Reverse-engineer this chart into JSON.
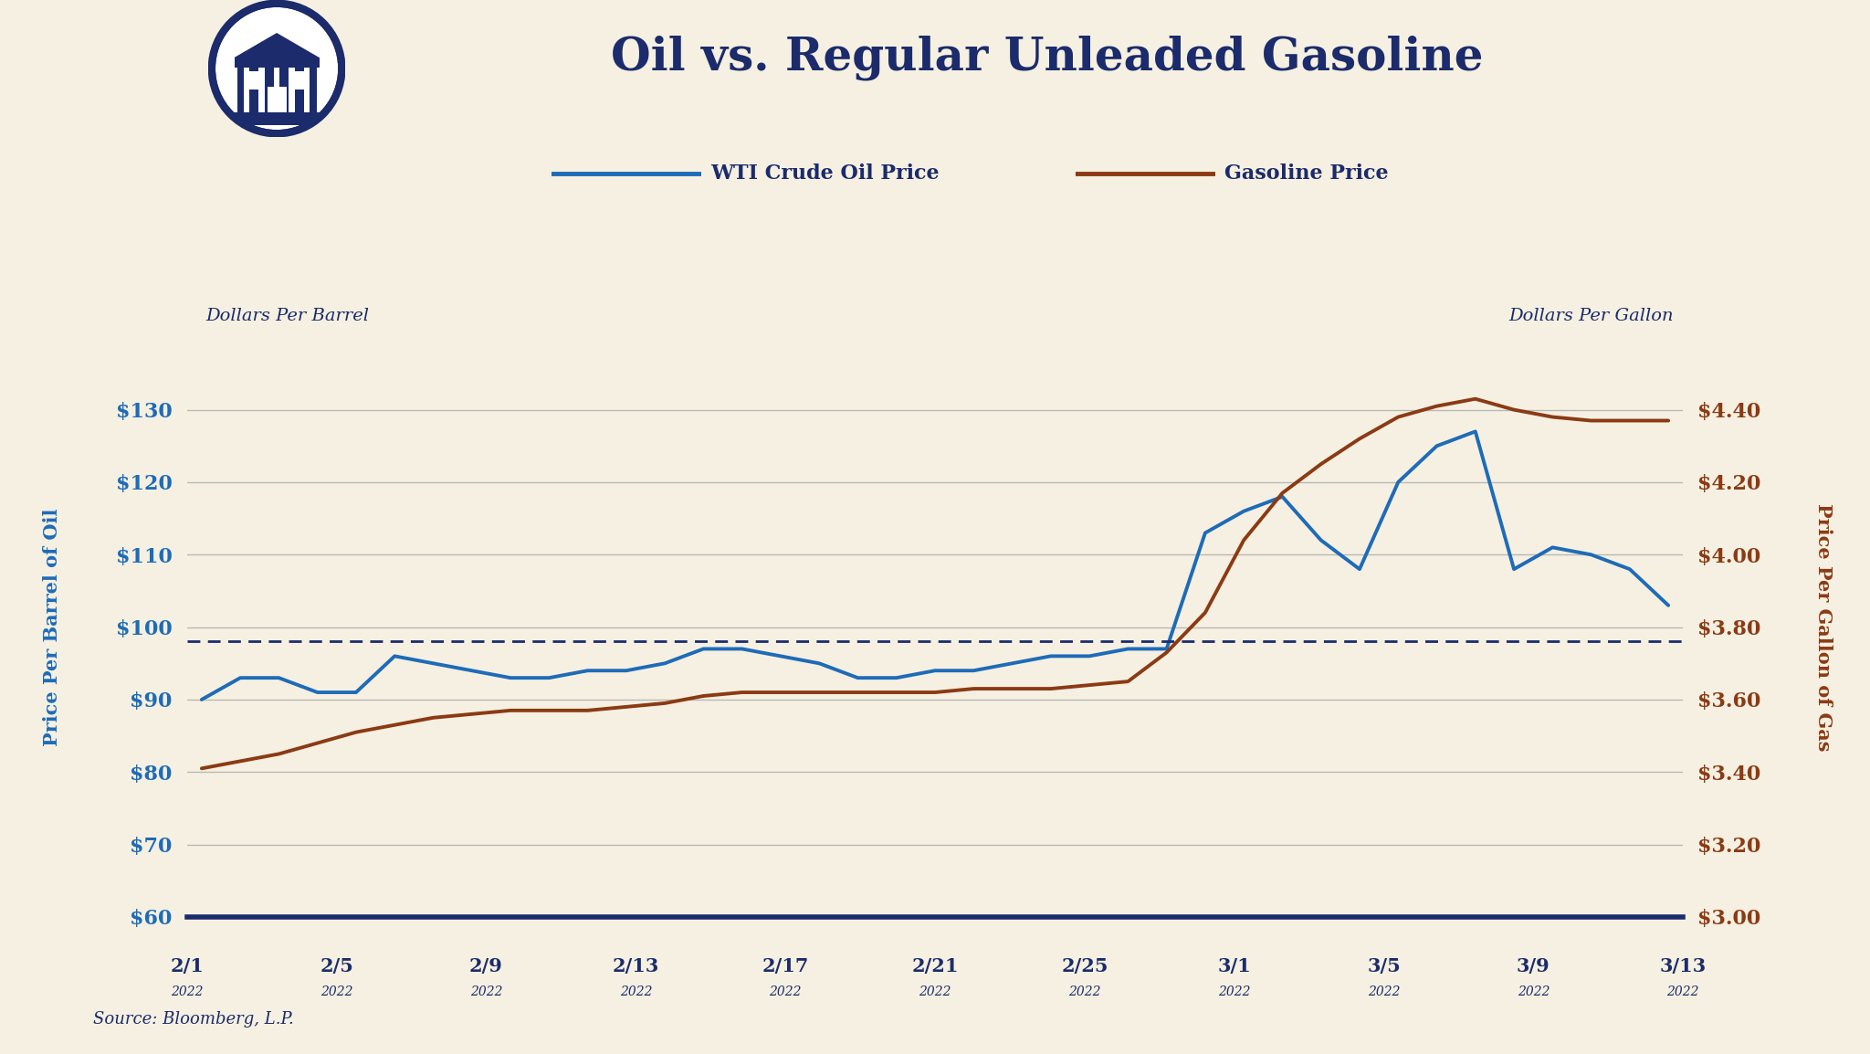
{
  "title": "Oil vs. Regular Unleaded Gasoline",
  "background_color": "#f5f0e1",
  "plot_bg_color": "#f5f0e1",
  "dark_navy": "#1b2b6b",
  "blue_color": "#1e6bb8",
  "brown_color": "#8b3a14",
  "x_labels": [
    "2/1",
    "2/5",
    "2/9",
    "2/13",
    "2/17",
    "2/21",
    "2/25",
    "3/1",
    "3/5",
    "3/9",
    "3/13"
  ],
  "x_sublabels": [
    "2022",
    "2022",
    "2022",
    "2022",
    "2022",
    "2022",
    "2022",
    "2022",
    "2022",
    "2022",
    "2022"
  ],
  "oil_prices": [
    90,
    93,
    93,
    91,
    91,
    96,
    95,
    94,
    93,
    93,
    94,
    94,
    95,
    97,
    97,
    96,
    95,
    93,
    93,
    94,
    94,
    95,
    96,
    96,
    97,
    97,
    113,
    116,
    118,
    112,
    108,
    120,
    125,
    127,
    108,
    111,
    110,
    108,
    103
  ],
  "gas_prices": [
    3.41,
    3.43,
    3.45,
    3.48,
    3.51,
    3.53,
    3.55,
    3.56,
    3.57,
    3.57,
    3.57,
    3.58,
    3.59,
    3.61,
    3.62,
    3.62,
    3.62,
    3.62,
    3.62,
    3.62,
    3.63,
    3.63,
    3.63,
    3.64,
    3.65,
    3.73,
    3.84,
    4.04,
    4.17,
    4.25,
    4.32,
    4.38,
    4.41,
    4.43,
    4.4,
    4.38,
    4.37,
    4.37,
    4.37
  ],
  "oil_ylim": [
    60,
    140
  ],
  "gas_ylim": [
    3.0,
    4.6
  ],
  "oil_yticks": [
    60,
    70,
    80,
    90,
    100,
    110,
    120,
    130
  ],
  "gas_yticks": [
    3.0,
    3.2,
    3.4,
    3.6,
    3.8,
    4.0,
    4.2,
    4.4
  ],
  "dashed_line_oil_value": 98,
  "left_axis_label": "Price Per Barrel of Oil",
  "right_axis_label": "Price Per Gallon of Gas",
  "left_top_label": "Dollars Per Barrel",
  "right_top_label": "Dollars Per Gallon",
  "legend_oil": "WTI Crude Oil Price",
  "legend_gas": "Gasoline Price",
  "source_text": "Source: Bloomberg, L.P.",
  "grid_color": "#b8b8b8"
}
